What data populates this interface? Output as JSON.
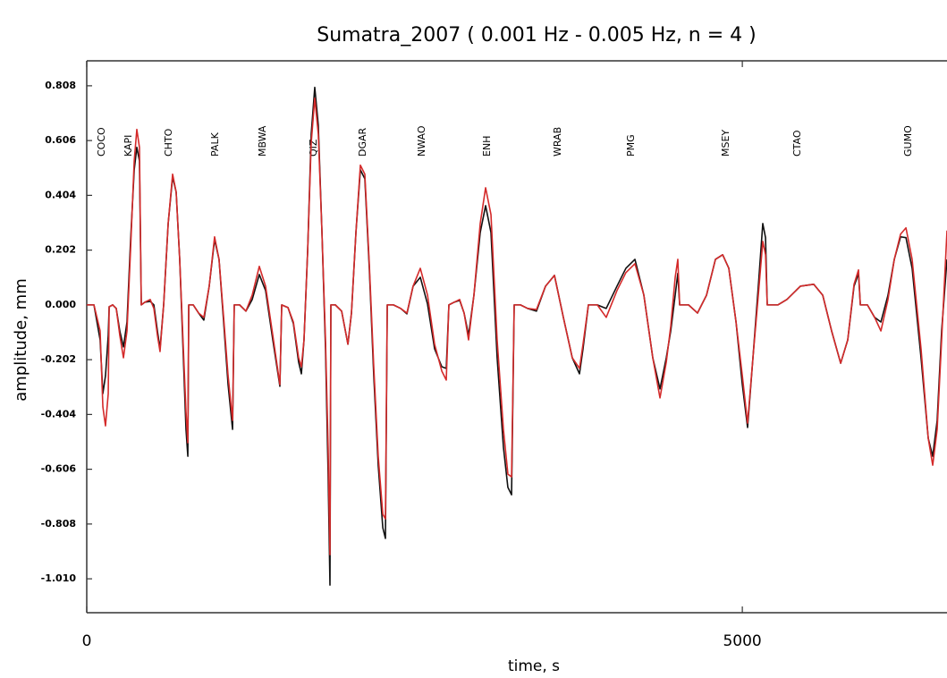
{
  "chart_data": {
    "type": "line",
    "title": "Sumatra_2007 ( 0.001 Hz - 0.005 Hz, n = 4 )",
    "x_label": "time,  s",
    "y_label": "amplitude, mm",
    "xlim": [
      0,
      6561
    ],
    "ylim": [
      -1.135,
      0.9
    ],
    "xticks": [
      0,
      5000
    ],
    "yticks": [
      0.808,
      0.606,
      0.404,
      0.202,
      {
        "value": 0,
        "label": "0.000"
      },
      -0.202,
      -0.404,
      -0.606,
      -0.808,
      {
        "value": -1.01,
        "label": "-1.010"
      }
    ],
    "annotations": [
      {
        "text": "COCO",
        "x": 89
      },
      {
        "text": "KAPI",
        "x": 293
      },
      {
        "text": "CHTO",
        "x": 600
      },
      {
        "text": "PALK",
        "x": 955
      },
      {
        "text": "MBWA",
        "x": 1316
      },
      {
        "text": "QIZ",
        "x": 1705
      },
      {
        "text": "DGAR",
        "x": 2080
      },
      {
        "text": "NWAO",
        "x": 2531
      },
      {
        "text": "ENH",
        "x": 3029
      },
      {
        "text": "WRAB",
        "x": 3568
      },
      {
        "text": "PMG",
        "x": 4127
      },
      {
        "text": "MSEY",
        "x": 4850
      },
      {
        "text": "CTAO",
        "x": 5396
      },
      {
        "text": "GUMO",
        "x": 6242
      }
    ],
    "x": [
      0,
      55,
      102,
      123,
      143,
      164,
      171,
      198,
      225,
      252,
      280,
      307,
      334,
      362,
      382,
      402,
      416,
      443,
      484,
      512,
      539,
      559,
      587,
      621,
      655,
      682,
      709,
      737,
      757,
      771,
      778,
      812,
      853,
      893,
      934,
      975,
      1009,
      1044,
      1078,
      1112,
      1125,
      1166,
      1214,
      1262,
      1316,
      1364,
      1419,
      1473,
      1487,
      1535,
      1576,
      1616,
      1637,
      1657,
      1685,
      1712,
      1739,
      1766,
      1794,
      1821,
      1841,
      1855,
      1862,
      1896,
      1944,
      1992,
      2019,
      2053,
      2087,
      2121,
      2155,
      2189,
      2223,
      2258,
      2278,
      2292,
      2339,
      2394,
      2442,
      2489,
      2544,
      2599,
      2653,
      2708,
      2742,
      2762,
      2803,
      2844,
      2878,
      2912,
      2953,
      3001,
      3042,
      3083,
      3130,
      3178,
      3212,
      3240,
      3260,
      3308,
      3362,
      3430,
      3499,
      3567,
      3635,
      3703,
      3758,
      3785,
      3826,
      3894,
      3962,
      4044,
      4112,
      4181,
      4249,
      4317,
      4372,
      4420,
      4454,
      4488,
      4508,
      4522,
      4590,
      4658,
      4727,
      4795,
      4850,
      4897,
      4952,
      5000,
      5040,
      5081,
      5122,
      5156,
      5177,
      5190,
      5272,
      5340,
      5443,
      5545,
      5613,
      5681,
      5750,
      5804,
      5852,
      5886,
      5900,
      5954,
      6009,
      6057,
      6111,
      6159,
      6207,
      6248,
      6295,
      6363,
      6418,
      6452,
      6486,
      6520,
      6561
    ],
    "series": [
      {
        "color": "#111111",
        "values": [
          0,
          0,
          -0.129,
          -0.327,
          -0.261,
          -0.112,
          -0.007,
          0,
          -0.013,
          -0.096,
          -0.155,
          -0.063,
          0.234,
          0.498,
          0.581,
          0.531,
          0,
          0.01,
          0.013,
          0,
          -0.096,
          -0.162,
          0.003,
          0.3,
          0.472,
          0.416,
          0.168,
          -0.195,
          -0.459,
          -0.558,
          0,
          0,
          -0.03,
          -0.056,
          0.069,
          0.241,
          0.168,
          -0.063,
          -0.294,
          -0.459,
          0,
          0,
          -0.023,
          0.02,
          0.112,
          0.053,
          -0.129,
          -0.3,
          0,
          -0.01,
          -0.069,
          -0.211,
          -0.254,
          -0.129,
          0.201,
          0.63,
          0.802,
          0.663,
          0.267,
          -0.162,
          -0.624,
          -1.033,
          0,
          0,
          -0.023,
          -0.145,
          -0.03,
          0.267,
          0.498,
          0.465,
          0.135,
          -0.261,
          -0.591,
          -0.822,
          -0.861,
          0,
          0,
          -0.013,
          -0.033,
          0.069,
          0.102,
          0.003,
          -0.162,
          -0.228,
          -0.234,
          0,
          0.01,
          0.017,
          -0.03,
          -0.112,
          0.036,
          0.267,
          0.366,
          0.267,
          -0.195,
          -0.525,
          -0.673,
          -0.7,
          0,
          0,
          -0.013,
          -0.023,
          0.069,
          0.109,
          -0.046,
          -0.195,
          -0.254,
          -0.162,
          0,
          0,
          -0.013,
          0.069,
          0.135,
          0.168,
          0.036,
          -0.195,
          -0.31,
          -0.195,
          -0.096,
          0.036,
          0.116,
          0,
          0,
          -0.03,
          0.036,
          0.168,
          0.185,
          0.135,
          -0.063,
          -0.294,
          -0.452,
          -0.195,
          0.069,
          0.3,
          0.248,
          0,
          0,
          0.02,
          0.069,
          0.076,
          0.036,
          -0.096,
          -0.215,
          -0.129,
          0.069,
          0.116,
          0,
          0,
          -0.046,
          -0.063,
          0.036,
          0.168,
          0.251,
          0.248,
          0.135,
          -0.195,
          -0.492,
          -0.558,
          -0.426,
          -0.096,
          0.168
        ]
      },
      {
        "color": "#d42a2a",
        "values": [
          0,
          0,
          -0.096,
          -0.376,
          -0.446,
          -0.327,
          -0.007,
          0,
          -0.013,
          -0.112,
          -0.195,
          -0.096,
          0.201,
          0.531,
          0.647,
          0.581,
          0,
          0.01,
          0.02,
          -0.013,
          -0.112,
          -0.172,
          0.003,
          0.3,
          0.482,
          0.416,
          0.168,
          -0.162,
          -0.393,
          -0.508,
          0,
          0,
          -0.03,
          -0.046,
          0.069,
          0.251,
          0.168,
          -0.046,
          -0.261,
          -0.426,
          0,
          0,
          -0.023,
          0.036,
          0.142,
          0.069,
          -0.112,
          -0.294,
          0,
          -0.01,
          -0.063,
          -0.195,
          -0.228,
          -0.129,
          0.201,
          0.597,
          0.762,
          0.63,
          0.267,
          -0.129,
          -0.525,
          -0.921,
          0,
          0,
          -0.023,
          -0.145,
          -0.03,
          0.267,
          0.515,
          0.482,
          0.152,
          -0.228,
          -0.558,
          -0.772,
          -0.789,
          0,
          0,
          -0.013,
          -0.03,
          0.069,
          0.135,
          0.036,
          -0.145,
          -0.244,
          -0.277,
          0,
          0.01,
          0.02,
          -0.03,
          -0.129,
          0.036,
          0.3,
          0.432,
          0.333,
          -0.129,
          -0.459,
          -0.624,
          -0.634,
          0,
          0,
          -0.013,
          -0.017,
          0.069,
          0.109,
          -0.046,
          -0.195,
          -0.234,
          -0.145,
          0,
          0,
          -0.046,
          0.053,
          0.119,
          0.152,
          0.036,
          -0.195,
          -0.343,
          -0.211,
          -0.079,
          0.102,
          0.168,
          0,
          0,
          -0.03,
          0.036,
          0.168,
          0.185,
          0.135,
          -0.063,
          -0.261,
          -0.436,
          -0.195,
          0.036,
          0.234,
          0.185,
          0,
          0,
          0.02,
          0.069,
          0.076,
          0.036,
          -0.096,
          -0.215,
          -0.129,
          0.076,
          0.129,
          0,
          0,
          -0.046,
          -0.096,
          0.02,
          0.168,
          0.261,
          0.284,
          0.168,
          -0.162,
          -0.492,
          -0.591,
          -0.459,
          -0.129,
          0.274
        ]
      }
    ]
  }
}
